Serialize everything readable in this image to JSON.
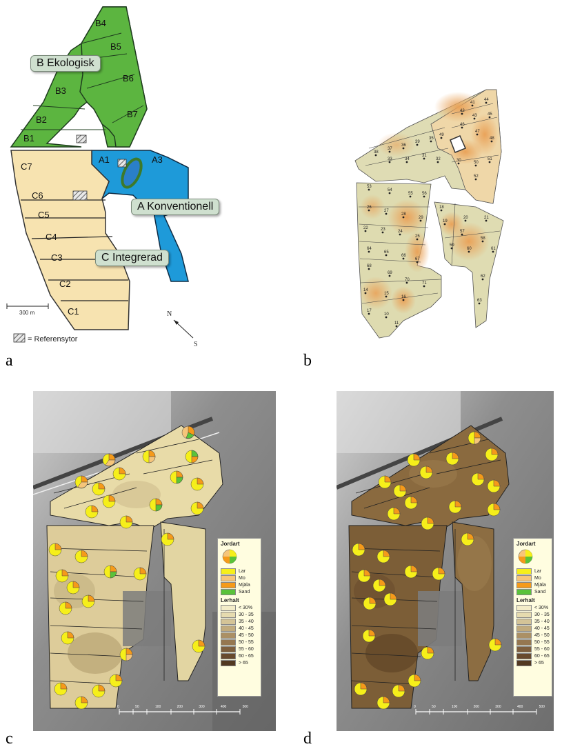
{
  "panels": {
    "a": "a",
    "b": "b",
    "c": "c",
    "d": "d"
  },
  "map_a": {
    "callouts": {
      "B": "B  Ekologisk",
      "A": "A  Konventionell",
      "C": "C  Integrerad"
    },
    "fields_b": [
      "B4",
      "B5",
      "B6",
      "B3",
      "B7",
      "B2",
      "B1"
    ],
    "fields_a": [
      "A1",
      "A3"
    ],
    "fields_c": [
      "C7",
      "C6",
      "C5",
      "C4",
      "C3",
      "C2",
      "C1"
    ],
    "scale": "300 m",
    "north": "N",
    "south": "S",
    "ref_legend": "= Referensytor",
    "colors": {
      "ekologisk": "#5cb540",
      "konventionell": "#1e9ad9",
      "integrerad": "#f7e3b0",
      "lake": "#2a7fc9"
    }
  },
  "map_b": {
    "points": [
      "41",
      "44",
      "45",
      "42",
      "43",
      "46",
      "47",
      "48",
      "49",
      "35",
      "39",
      "36",
      "37",
      "38",
      "33",
      "34",
      "31",
      "32",
      "30",
      "50",
      "51",
      "52",
      "53",
      "54",
      "55",
      "56",
      "26",
      "27",
      "28",
      "29",
      "22",
      "23",
      "24",
      "25",
      "18",
      "19",
      "20",
      "21",
      "57",
      "58",
      "59",
      "60",
      "61",
      "62",
      "63",
      "64",
      "65",
      "66",
      "67",
      "68",
      "69",
      "70",
      "71",
      "14",
      "15",
      "16",
      "17",
      "10",
      "11",
      "12",
      "13",
      "7",
      "8",
      "9",
      "5",
      "6",
      "1",
      "2",
      "3",
      "4"
    ]
  },
  "legend_c": {
    "title1": "Jordart",
    "soil": [
      {
        "label": "Lar",
        "color": "#f6ef1a"
      },
      {
        "label": "Mo",
        "color": "#f6c57a"
      },
      {
        "label": "Mjäla",
        "color": "#f59a1a"
      },
      {
        "label": "Sand",
        "color": "#5ac23a"
      }
    ],
    "title2": "Lerhalt",
    "clay": [
      {
        "label": "< 30%",
        "color": "#f3ecc8"
      },
      {
        "label": "30 - 35",
        "color": "#e6dbaf"
      },
      {
        "label": "35 - 40",
        "color": "#d4c497"
      },
      {
        "label": "40 - 45",
        "color": "#c1ab7d"
      },
      {
        "label": "45 - 50",
        "color": "#ab9065"
      },
      {
        "label": "50 - 55",
        "color": "#957750"
      },
      {
        "label": "55 - 60",
        "color": "#7e5f3d"
      },
      {
        "label": "60 - 65",
        "color": "#684a2d"
      },
      {
        "label": "> 65",
        "color": "#523821"
      }
    ]
  },
  "scale_cd": [
    "0",
    "50",
    "100",
    "200",
    "300",
    "400",
    "500"
  ]
}
